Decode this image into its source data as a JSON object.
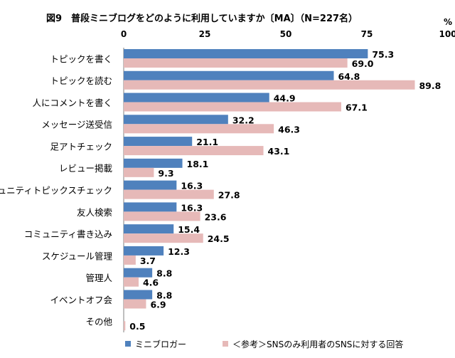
{
  "chart_data": {
    "type": "bar",
    "orientation": "horizontal",
    "title": "図9　普段ミニブログをどのように利用していますか〔MA〕（N=227名）",
    "xlim": [
      0,
      100
    ],
    "x_ticks": [
      "0",
      "25",
      "50",
      "75",
      "100"
    ],
    "unit": "%",
    "grid": false,
    "legend_position": "bottom",
    "categories": [
      "トピックを書く",
      "トピックを読む",
      "人にコメントを書く",
      "メッセージ送受信",
      "足アトチェック",
      "レビュー掲載",
      "コミュニティトピックスチェック",
      "友人検索",
      "コミュニティ書き込み",
      "スケジュール管理",
      "管理人",
      "イベントオフ会",
      "その他"
    ],
    "series": [
      {
        "name": "ミニブロガー",
        "color": "#4F81BD",
        "values": [
          75.3,
          64.8,
          44.9,
          32.2,
          21.1,
          18.1,
          16.3,
          16.3,
          15.4,
          12.3,
          8.8,
          8.8,
          null
        ],
        "labels": [
          "75.3",
          "64.8",
          "44.9",
          "32.2",
          "21.1",
          "18.1",
          "16.3",
          "16.3",
          "15.4",
          "12.3",
          "8.8",
          "8.8",
          ""
        ]
      },
      {
        "name": "＜参考＞SNSのみ利用者のSNSに対する回答",
        "color": "#E6B9B8",
        "values": [
          69.0,
          89.8,
          67.1,
          46.3,
          43.1,
          9.3,
          27.8,
          23.6,
          24.5,
          3.7,
          4.6,
          6.9,
          0.5
        ],
        "labels": [
          "69.0",
          "89.8",
          "67.1",
          "46.3",
          "43.1",
          "9.3",
          "27.8",
          "23.6",
          "24.5",
          "3.7",
          "4.6",
          "6.9",
          "0.5"
        ]
      }
    ]
  }
}
